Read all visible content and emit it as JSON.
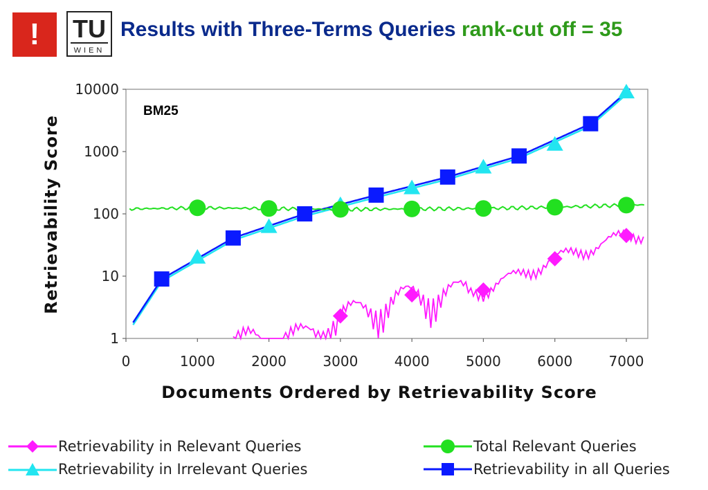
{
  "header": {
    "logo_mark": "!",
    "logo_text_top": "TU",
    "logo_text_bottom": "WIEN",
    "title_main": "Results with Three-Terms Queries",
    "title_accent": "rank-cut off = 35"
  },
  "colors": {
    "title": "#0a2a8c",
    "accent": "#2e9a1a",
    "logo_red": "#d9261c",
    "relevant": "#ff1aff",
    "irrelevant": "#22e5f0",
    "total": "#22e020",
    "all": "#0a1aff"
  },
  "chart_data": {
    "type": "line",
    "title": "BM25",
    "xlabel": "Documents Ordered by Retrievability Score",
    "ylabel": "Retrievability Score",
    "xlim": [
      0,
      7300
    ],
    "ylim": [
      1,
      10000
    ],
    "yscale": "log",
    "grid": false,
    "legend_position": "bottom",
    "x_ticks": [
      "0",
      "1000",
      "2000",
      "3000",
      "4000",
      "5000",
      "6000",
      "7000"
    ],
    "y_ticks": [
      "1",
      "10",
      "100",
      "1000",
      "10000"
    ],
    "series": [
      {
        "name": "Retrievability in Relevant Queries",
        "marker": "diamond",
        "color": "#ff1aff",
        "x": [
          3000,
          4000,
          5000,
          6000,
          7000
        ],
        "y": [
          2.3,
          5,
          6,
          19,
          45
        ]
      },
      {
        "name": "Retrievability in Irrelevant Queries",
        "marker": "triangle",
        "color": "#22e5f0",
        "x": [
          1000,
          2000,
          3000,
          4000,
          5000,
          6000,
          7000
        ],
        "y": [
          20,
          62,
          140,
          260,
          560,
          1300,
          9000
        ]
      },
      {
        "name": "Total Relevant Queries",
        "marker": "circle",
        "color": "#22e020",
        "x": [
          1000,
          2000,
          3000,
          4000,
          5000,
          6000,
          7000
        ],
        "y": [
          125,
          122,
          118,
          120,
          122,
          128,
          138
        ]
      },
      {
        "name": "Retrievability in all Queries",
        "marker": "square",
        "color": "#0a1aff",
        "x": [
          500,
          1500,
          2500,
          3500,
          4500,
          5500,
          6500
        ],
        "y": [
          9,
          41,
          100,
          200,
          390,
          850,
          2800
        ]
      }
    ]
  }
}
